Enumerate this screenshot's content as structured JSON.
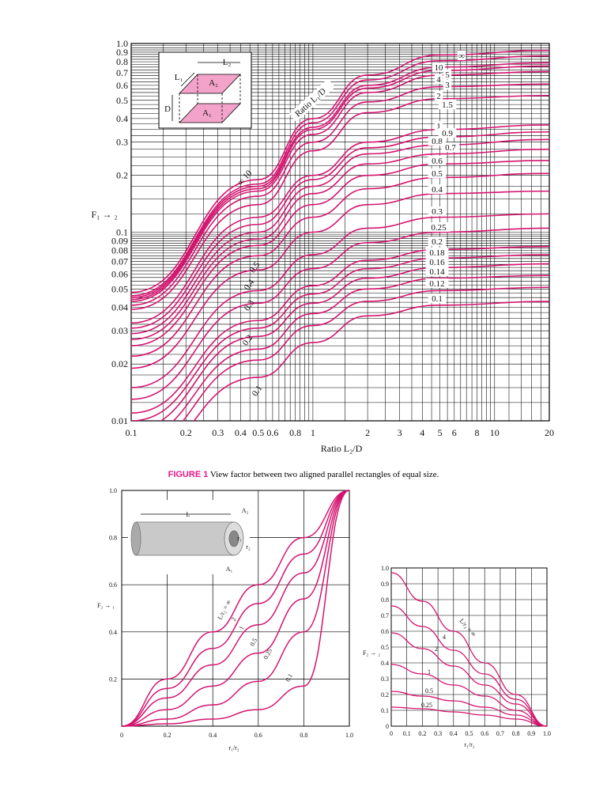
{
  "colors": {
    "curve": "#d4146f",
    "grid": "#000000",
    "inset_fill": "#f3a3c9"
  },
  "figure1": {
    "caption_label": "FIGURE 1",
    "caption_text": "View factor between two aligned parallel rectangles of equal size."
  },
  "chart_data": [
    {
      "type": "line",
      "xscale": "log",
      "yscale": "log",
      "xlim": [
        0.1,
        20
      ],
      "ylim": [
        0.01,
        1.0
      ],
      "xlabel": "Ratio L₂/D",
      "ylabel": "F₁ → ₂",
      "curve_family_label": "Ratio L₁/D",
      "x_ticks": [
        "0.1",
        "0.2",
        "0.3",
        "0.4",
        "0.5",
        "0.6",
        "0.8",
        "1",
        "2",
        "3",
        "4",
        "5",
        "6",
        "8",
        "10",
        "20"
      ],
      "y_ticks": [
        "0.01",
        "0.02",
        "0.03",
        "0.04",
        "0.05",
        "0.06",
        "0.07",
        "0.08",
        "0.09",
        "0.1",
        "0.2",
        "0.3",
        "0.4",
        "0.5",
        "0.6",
        "0.7",
        "0.8",
        "0.9",
        "1.0"
      ],
      "series": [
        {
          "name": "∞",
          "values": [
            0.048,
            0.19,
            0.4,
            0.68,
            0.87,
            0.92
          ]
        },
        {
          "name": "10",
          "values": [
            0.046,
            0.18,
            0.38,
            0.64,
            0.81,
            0.86
          ]
        },
        {
          "name": "5",
          "values": [
            0.045,
            0.175,
            0.36,
            0.6,
            0.75,
            0.79
          ]
        },
        {
          "name": "4",
          "values": [
            0.044,
            0.17,
            0.35,
            0.58,
            0.72,
            0.76
          ]
        },
        {
          "name": "3",
          "values": [
            0.043,
            0.165,
            0.33,
            0.55,
            0.68,
            0.71
          ]
        },
        {
          "name": "2",
          "values": [
            0.041,
            0.155,
            0.3,
            0.49,
            0.59,
            0.61
          ]
        },
        {
          "name": "1.5",
          "values": [
            0.039,
            0.14,
            0.27,
            0.43,
            0.51,
            0.53
          ]
        },
        {
          "name": "1",
          "values": [
            0.033,
            0.12,
            0.2,
            0.3,
            0.35,
            0.37
          ]
        },
        {
          "name": "0.9",
          "values": [
            0.031,
            0.11,
            0.19,
            0.28,
            0.32,
            0.34
          ]
        },
        {
          "name": "0.8",
          "values": [
            0.029,
            0.1,
            0.175,
            0.26,
            0.29,
            0.31
          ]
        },
        {
          "name": "0.7",
          "values": [
            0.027,
            0.092,
            0.16,
            0.23,
            0.26,
            0.275
          ]
        },
        {
          "name": "0.6",
          "values": [
            0.025,
            0.085,
            0.14,
            0.2,
            0.23,
            0.24
          ]
        },
        {
          "name": "0.5",
          "values": [
            0.022,
            0.075,
            0.12,
            0.17,
            0.195,
            0.205
          ]
        },
        {
          "name": "0.4",
          "values": [
            0.019,
            0.063,
            0.1,
            0.14,
            0.16,
            0.165
          ]
        },
        {
          "name": "0.3",
          "values": [
            0.015,
            0.049,
            0.076,
            0.105,
            0.12,
            0.125
          ]
        },
        {
          "name": "0.25",
          "values": [
            0.013,
            0.042,
            0.064,
            0.088,
            0.1,
            0.105
          ]
        },
        {
          "name": "0.2",
          "values": [
            0.011,
            0.034,
            0.052,
            0.071,
            0.081,
            0.084
          ]
        },
        {
          "name": "0.18",
          "values": [
            0.01,
            0.031,
            0.047,
            0.064,
            0.073,
            0.076
          ]
        },
        {
          "name": "0.16",
          "values": [
            0.009,
            0.028,
            0.042,
            0.057,
            0.065,
            0.068
          ]
        },
        {
          "name": "0.14",
          "values": [
            0.008,
            0.024,
            0.037,
            0.05,
            0.057,
            0.059
          ]
        },
        {
          "name": "0.12",
          "values": [
            0.007,
            0.021,
            0.032,
            0.043,
            0.049,
            0.051
          ]
        },
        {
          "name": "0.1",
          "values": [
            0.006,
            0.017,
            0.026,
            0.036,
            0.041,
            0.043
          ]
        }
      ],
      "x": [
        0.1,
        0.5,
        1,
        2,
        5,
        20
      ],
      "inline_labels": [
        "0.5",
        "0.4",
        "0.3",
        "0.2",
        "0.1"
      ],
      "inset": {
        "L1": "L₁",
        "L2": "L₂",
        "D": "D",
        "A1": "A₁",
        "A2": "A₂"
      }
    },
    {
      "type": "line",
      "xlim": [
        0,
        1.0
      ],
      "ylim": [
        0,
        1.0
      ],
      "xlabel": "r₁/r₂",
      "ylabel": "F₂ → ₁",
      "x_ticks": [
        "0",
        "0.2",
        "0.4",
        "0.6",
        "0.8",
        "1.0"
      ],
      "y_ticks": [
        "0.2",
        "0.4",
        "0.6",
        "0.8",
        "1.0"
      ],
      "series": [
        {
          "name": "L/r₂ = ∞",
          "x": [
            0,
            0.2,
            0.4,
            0.6,
            0.8,
            1.0
          ],
          "values": [
            0,
            0.2,
            0.4,
            0.6,
            0.8,
            1.0
          ]
        },
        {
          "name": "2",
          "x": [
            0,
            0.2,
            0.4,
            0.6,
            0.8,
            1.0
          ],
          "values": [
            0,
            0.16,
            0.33,
            0.52,
            0.73,
            1.0
          ]
        },
        {
          "name": "1",
          "x": [
            0,
            0.2,
            0.4,
            0.6,
            0.8,
            1.0
          ],
          "values": [
            0,
            0.12,
            0.26,
            0.43,
            0.65,
            1.0
          ]
        },
        {
          "name": "0.5",
          "x": [
            0,
            0.2,
            0.4,
            0.6,
            0.8,
            1.0
          ],
          "values": [
            0,
            0.07,
            0.17,
            0.31,
            0.54,
            1.0
          ]
        },
        {
          "name": "0.25",
          "x": [
            0,
            0.2,
            0.4,
            0.6,
            0.8,
            1.0
          ],
          "values": [
            0,
            0.03,
            0.09,
            0.19,
            0.4,
            1.0
          ]
        },
        {
          "name": "0.1",
          "x": [
            0,
            0.2,
            0.4,
            0.6,
            0.8,
            1.0
          ],
          "values": [
            0,
            0.01,
            0.03,
            0.07,
            0.17,
            1.0
          ]
        }
      ],
      "inset": {
        "L": "L",
        "A1": "A₁",
        "A2": "A₂",
        "r1": "r₁",
        "r2": "r₂"
      }
    },
    {
      "type": "line",
      "xlim": [
        0,
        1.0
      ],
      "ylim": [
        0,
        1.0
      ],
      "xlabel": "r₁/r₂",
      "ylabel": "F₂ → ₂",
      "x_ticks": [
        "0",
        "0.1",
        "0.2",
        "0.3",
        "0.4",
        "0.5",
        "0.6",
        "0.7",
        "0.8",
        "0.9",
        "1.0"
      ],
      "y_ticks": [
        "0",
        "0.1",
        "0.2",
        "0.3",
        "0.4",
        "0.5",
        "0.6",
        "0.7",
        "0.8",
        "0.9",
        "1.0"
      ],
      "series": [
        {
          "name": "L/r₂ = ∞",
          "x": [
            0,
            0.2,
            0.4,
            0.6,
            0.8,
            1.0
          ],
          "values": [
            0.97,
            0.79,
            0.6,
            0.4,
            0.2,
            0.0
          ]
        },
        {
          "name": "4",
          "x": [
            0,
            0.2,
            0.4,
            0.6,
            0.8,
            1.0
          ],
          "values": [
            0.76,
            0.63,
            0.48,
            0.33,
            0.17,
            0.0
          ]
        },
        {
          "name": "2",
          "x": [
            0,
            0.2,
            0.4,
            0.6,
            0.8,
            1.0
          ],
          "values": [
            0.59,
            0.49,
            0.38,
            0.26,
            0.14,
            0.0
          ]
        },
        {
          "name": "1",
          "x": [
            0,
            0.2,
            0.4,
            0.6,
            0.8,
            1.0
          ],
          "values": [
            0.39,
            0.33,
            0.26,
            0.19,
            0.1,
            0.0
          ]
        },
        {
          "name": "0.5",
          "x": [
            0,
            0.2,
            0.4,
            0.6,
            0.8,
            1.0
          ],
          "values": [
            0.22,
            0.19,
            0.16,
            0.12,
            0.07,
            0.0
          ]
        },
        {
          "name": "0.25",
          "x": [
            0,
            0.2,
            0.4,
            0.6,
            0.8,
            1.0
          ],
          "values": [
            0.12,
            0.11,
            0.09,
            0.07,
            0.045,
            0.0
          ]
        }
      ]
    }
  ]
}
